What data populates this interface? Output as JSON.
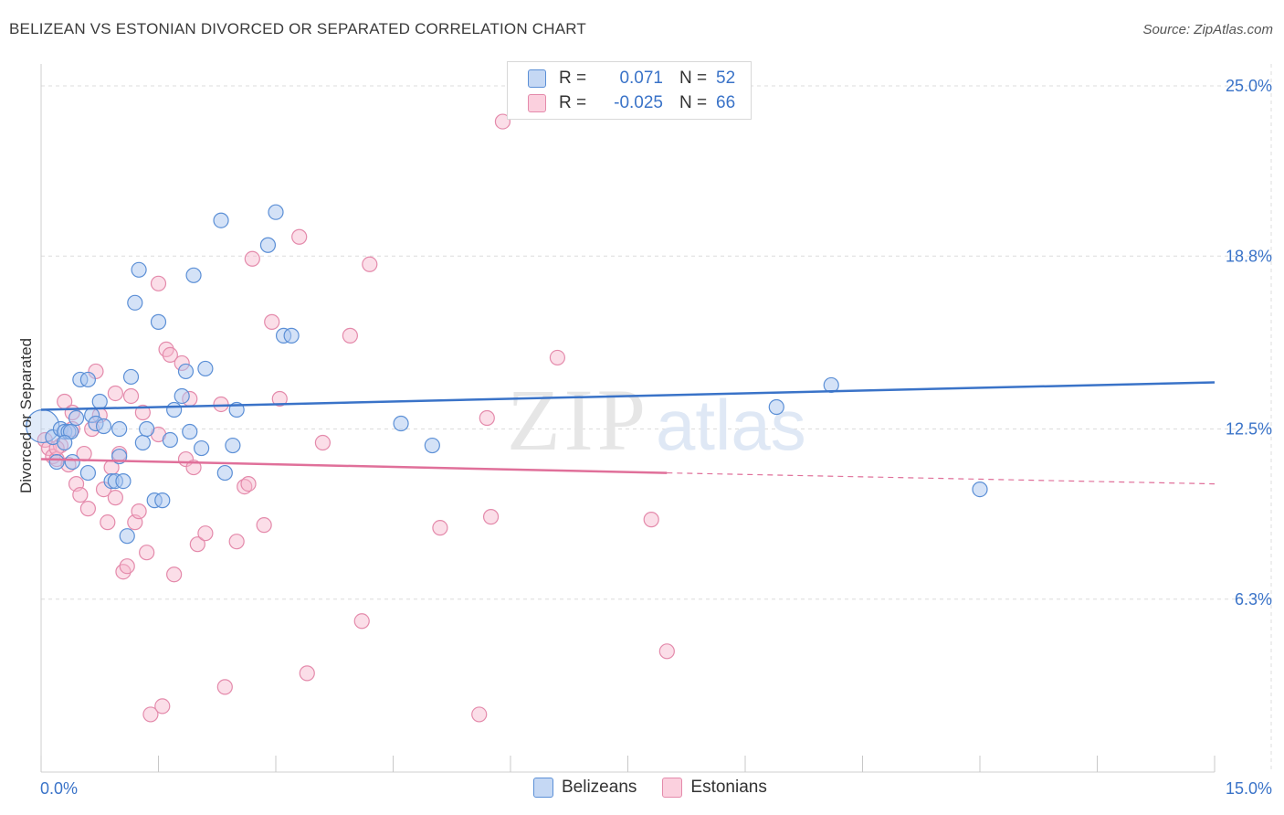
{
  "title": "BELIZEAN VS ESTONIAN DIVORCED OR SEPARATED CORRELATION CHART",
  "source": "Source: ZipAtlas.com",
  "watermark": {
    "zip": "ZIP",
    "atlas": "atlas"
  },
  "colors": {
    "blue": "#3a73c8",
    "blue_fill": "#a9c6ef",
    "blue_stroke": "#5b8fd6",
    "pink": "#e0709a",
    "pink_fill": "#f6b6cb",
    "pink_stroke": "#e48aab",
    "grid": "#dcdcdc"
  },
  "legend": {
    "rows": [
      {
        "r_label": "R =",
        "r_value": "0.071",
        "n_label": "N =",
        "n_value": "52"
      },
      {
        "r_label": "R =",
        "r_value": "-0.025",
        "n_label": "N =",
        "n_value": "66"
      }
    ]
  },
  "chart_data": {
    "type": "scatter",
    "xlabel": "",
    "ylabel": "Divorced or Separated",
    "xlim": [
      0,
      15
    ],
    "ylim": [
      0,
      25.8
    ],
    "x_tick_labels": [
      "0.0%",
      "15.0%"
    ],
    "y_ticks": [
      6.3,
      12.5,
      18.8,
      25.0
    ],
    "y_tick_labels": [
      "6.3%",
      "12.5%",
      "18.8%",
      "25.0%"
    ],
    "legend_position": "bottom",
    "series": [
      {
        "name": "Belizeans",
        "trend": {
          "x": [
            0,
            15
          ],
          "y": [
            13.2,
            14.2
          ],
          "dashed_from": null
        },
        "points": [
          [
            0.02,
            12.6
          ],
          [
            0.15,
            12.2
          ],
          [
            0.2,
            11.3
          ],
          [
            0.25,
            12.5
          ],
          [
            0.3,
            12.4
          ],
          [
            0.35,
            12.4
          ],
          [
            0.38,
            12.4
          ],
          [
            0.45,
            12.9
          ],
          [
            0.5,
            14.3
          ],
          [
            0.6,
            14.3
          ],
          [
            0.65,
            13.0
          ],
          [
            0.7,
            12.7
          ],
          [
            0.75,
            13.5
          ],
          [
            0.8,
            12.6
          ],
          [
            0.9,
            10.6
          ],
          [
            0.95,
            10.6
          ],
          [
            1.0,
            11.5
          ],
          [
            1.05,
            10.6
          ],
          [
            1.1,
            8.6
          ],
          [
            1.15,
            14.4
          ],
          [
            1.2,
            17.1
          ],
          [
            1.25,
            18.3
          ],
          [
            1.3,
            12.0
          ],
          [
            1.35,
            12.5
          ],
          [
            1.45,
            9.9
          ],
          [
            1.5,
            16.4
          ],
          [
            1.55,
            9.9
          ],
          [
            1.65,
            12.1
          ],
          [
            1.7,
            13.2
          ],
          [
            1.8,
            13.7
          ],
          [
            1.85,
            14.6
          ],
          [
            1.9,
            12.4
          ],
          [
            1.95,
            18.1
          ],
          [
            2.05,
            11.8
          ],
          [
            2.1,
            14.7
          ],
          [
            2.3,
            20.1
          ],
          [
            2.35,
            10.9
          ],
          [
            2.45,
            11.9
          ],
          [
            2.5,
            13.2
          ],
          [
            2.9,
            19.2
          ],
          [
            3.0,
            20.4
          ],
          [
            3.1,
            15.9
          ],
          [
            3.2,
            15.9
          ],
          [
            0.4,
            11.3
          ],
          [
            0.6,
            10.9
          ],
          [
            0.3,
            12.0
          ],
          [
            4.6,
            12.7
          ],
          [
            5.0,
            11.9
          ],
          [
            9.4,
            13.3
          ],
          [
            10.1,
            14.1
          ],
          [
            12.0,
            10.3
          ],
          [
            1.0,
            12.5
          ]
        ]
      },
      {
        "name": "Estonians",
        "trend": {
          "x": [
            0,
            8.0
          ],
          "y": [
            11.4,
            10.9
          ],
          "dashed_from": 8.0,
          "dashed_to": [
            15,
            10.5
          ]
        },
        "points": [
          [
            0.05,
            12.1
          ],
          [
            0.1,
            11.8
          ],
          [
            0.15,
            11.5
          ],
          [
            0.2,
            11.4
          ],
          [
            0.25,
            11.9
          ],
          [
            0.3,
            13.5
          ],
          [
            0.35,
            11.2
          ],
          [
            0.4,
            13.1
          ],
          [
            0.45,
            10.5
          ],
          [
            0.5,
            10.1
          ],
          [
            0.55,
            11.6
          ],
          [
            0.6,
            9.6
          ],
          [
            0.65,
            12.5
          ],
          [
            0.7,
            14.6
          ],
          [
            0.75,
            13.0
          ],
          [
            0.8,
            10.3
          ],
          [
            0.85,
            9.1
          ],
          [
            0.9,
            11.1
          ],
          [
            0.95,
            13.8
          ],
          [
            1.0,
            11.6
          ],
          [
            1.05,
            7.3
          ],
          [
            1.1,
            7.5
          ],
          [
            1.15,
            13.7
          ],
          [
            1.2,
            9.1
          ],
          [
            1.25,
            9.5
          ],
          [
            1.3,
            13.1
          ],
          [
            1.35,
            8.0
          ],
          [
            1.4,
            2.1
          ],
          [
            1.5,
            12.3
          ],
          [
            1.55,
            2.4
          ],
          [
            1.6,
            15.4
          ],
          [
            1.65,
            15.2
          ],
          [
            1.7,
            7.2
          ],
          [
            1.8,
            14.9
          ],
          [
            1.85,
            11.4
          ],
          [
            1.9,
            13.6
          ],
          [
            1.95,
            11.1
          ],
          [
            2.0,
            8.3
          ],
          [
            2.1,
            8.7
          ],
          [
            2.3,
            13.4
          ],
          [
            2.35,
            3.1
          ],
          [
            2.5,
            8.4
          ],
          [
            2.6,
            10.4
          ],
          [
            2.65,
            10.5
          ],
          [
            2.7,
            18.7
          ],
          [
            2.85,
            9.0
          ],
          [
            2.95,
            16.4
          ],
          [
            3.05,
            13.6
          ],
          [
            3.3,
            19.5
          ],
          [
            3.4,
            3.6
          ],
          [
            3.6,
            12.0
          ],
          [
            3.95,
            15.9
          ],
          [
            4.1,
            5.5
          ],
          [
            4.2,
            18.5
          ],
          [
            5.1,
            8.9
          ],
          [
            5.6,
            2.1
          ],
          [
            5.7,
            12.9
          ],
          [
            5.75,
            9.3
          ],
          [
            5.9,
            23.7
          ],
          [
            6.6,
            15.1
          ],
          [
            7.8,
            9.2
          ],
          [
            8.0,
            4.4
          ],
          [
            1.5,
            17.8
          ],
          [
            0.95,
            10.0
          ],
          [
            0.4,
            12.5
          ],
          [
            0.2,
            11.8
          ]
        ]
      }
    ]
  }
}
